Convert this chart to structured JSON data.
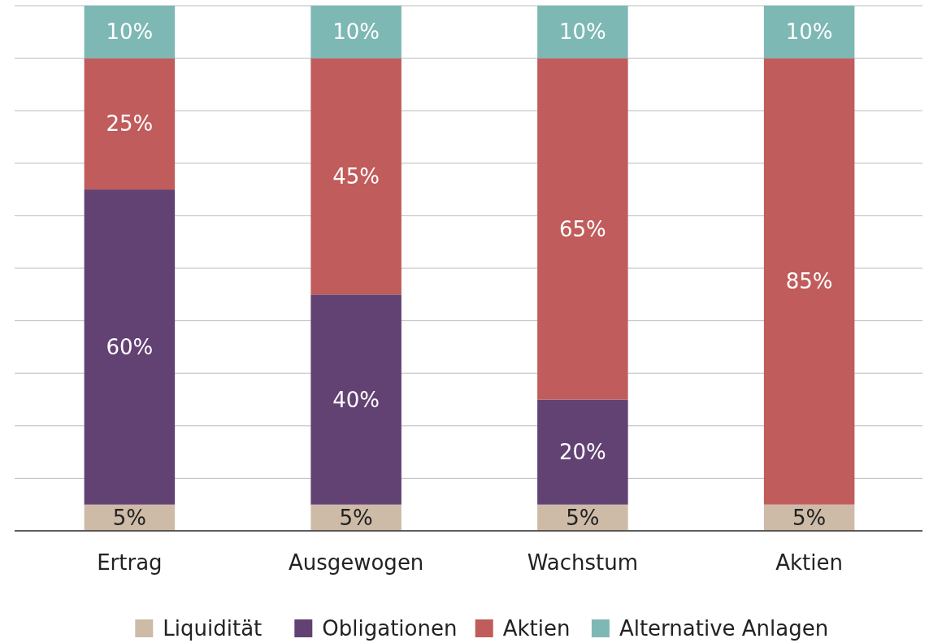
{
  "chart_data": {
    "type": "bar",
    "stacked": true,
    "categories": [
      "Ertrag",
      "Ausgewogen",
      "Wachstum",
      "Aktien"
    ],
    "series": [
      {
        "name": "Liquidität",
        "color": "#cdbba8",
        "values": [
          5,
          5,
          5,
          5
        ],
        "value_labels": [
          "5%",
          "5%",
          "5%",
          "5%"
        ]
      },
      {
        "name": "Obligationen",
        "color": "#624173",
        "values": [
          60,
          40,
          20,
          null
        ],
        "value_labels": [
          "60%",
          "40%",
          "20%",
          null
        ]
      },
      {
        "name": "Aktien",
        "color": "#c05c5b",
        "values": [
          25,
          45,
          65,
          85
        ],
        "value_labels": [
          "25%",
          "45%",
          "65%",
          "85%"
        ]
      },
      {
        "name": "Alternative Anlagen",
        "color": "#7db8b4",
        "values": [
          10,
          10,
          10,
          10
        ],
        "value_labels": [
          "10%",
          "10%",
          "10%",
          "10%"
        ]
      }
    ],
    "tick_labels": "x",
    "grid": "y",
    "legend": "bottom"
  }
}
